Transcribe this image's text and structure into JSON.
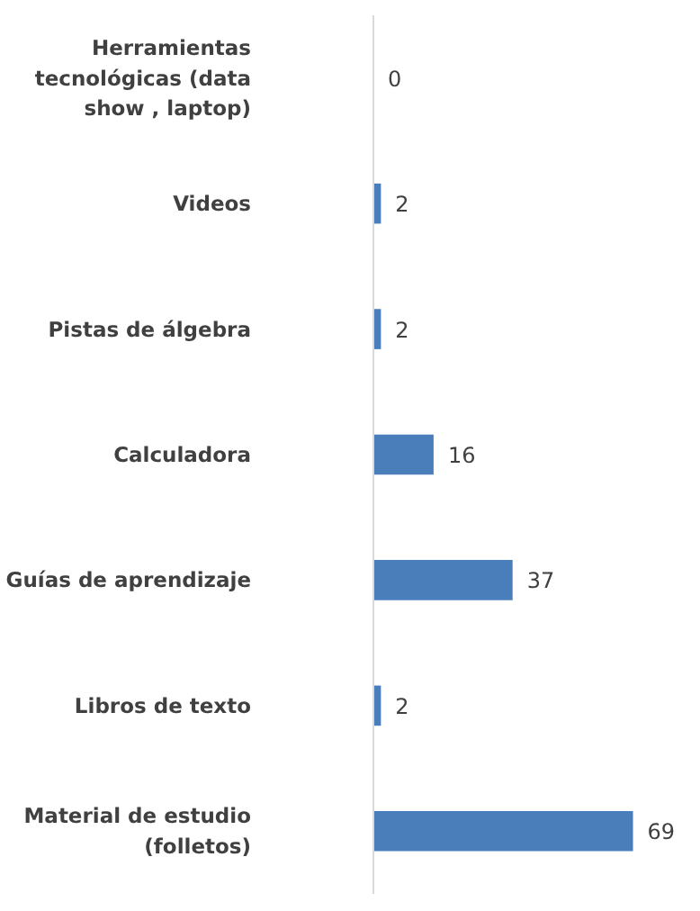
{
  "chart_data": {
    "type": "bar",
    "orientation": "horizontal",
    "categories": [
      "Herramientas tecnológicas (data show , laptop)",
      "Videos",
      "Pistas de álgebra",
      "Calculadora",
      "Guías de aprendizaje",
      "Libros de texto",
      "Material de estudio (folletos)"
    ],
    "values": [
      0,
      2,
      2,
      16,
      37,
      2,
      69
    ],
    "color": "#4a7ebb",
    "data_labels": true,
    "grid": false,
    "tick_labels": "y"
  }
}
